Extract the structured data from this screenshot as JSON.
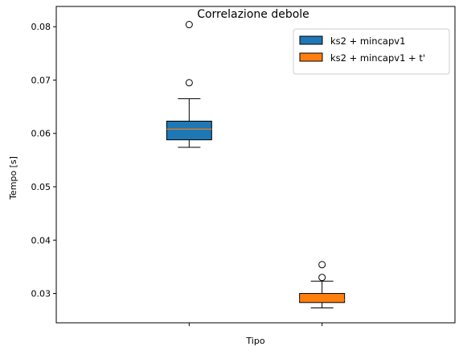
{
  "chart_data": {
    "type": "box",
    "title": "Correlazione debole",
    "xlabel": "Tipo",
    "ylabel": "Tempo [s]",
    "ylim": [
      0.0245,
      0.0838
    ],
    "yticks": [
      "0.03",
      "0.04",
      "0.05",
      "0.06",
      "0.07",
      "0.08"
    ],
    "grid": false,
    "legend_position": "top-right",
    "median_color": "#ff7f0e",
    "series": [
      {
        "name": "ks2 + mincapv1",
        "color": "#1f77b4",
        "whisker_low": 0.0574,
        "q1": 0.0588,
        "median": 0.0608,
        "q3": 0.0623,
        "whisker_high": 0.0665,
        "outliers": [
          0.0695,
          0.0804
        ]
      },
      {
        "name": "ks2 + mincapv1 + t'",
        "color": "#ff7f0e",
        "whisker_low": 0.0273,
        "q1": 0.0283,
        "median": 0.0288,
        "q3": 0.03,
        "whisker_high": 0.0323,
        "outliers": [
          0.033,
          0.0354
        ]
      }
    ]
  }
}
